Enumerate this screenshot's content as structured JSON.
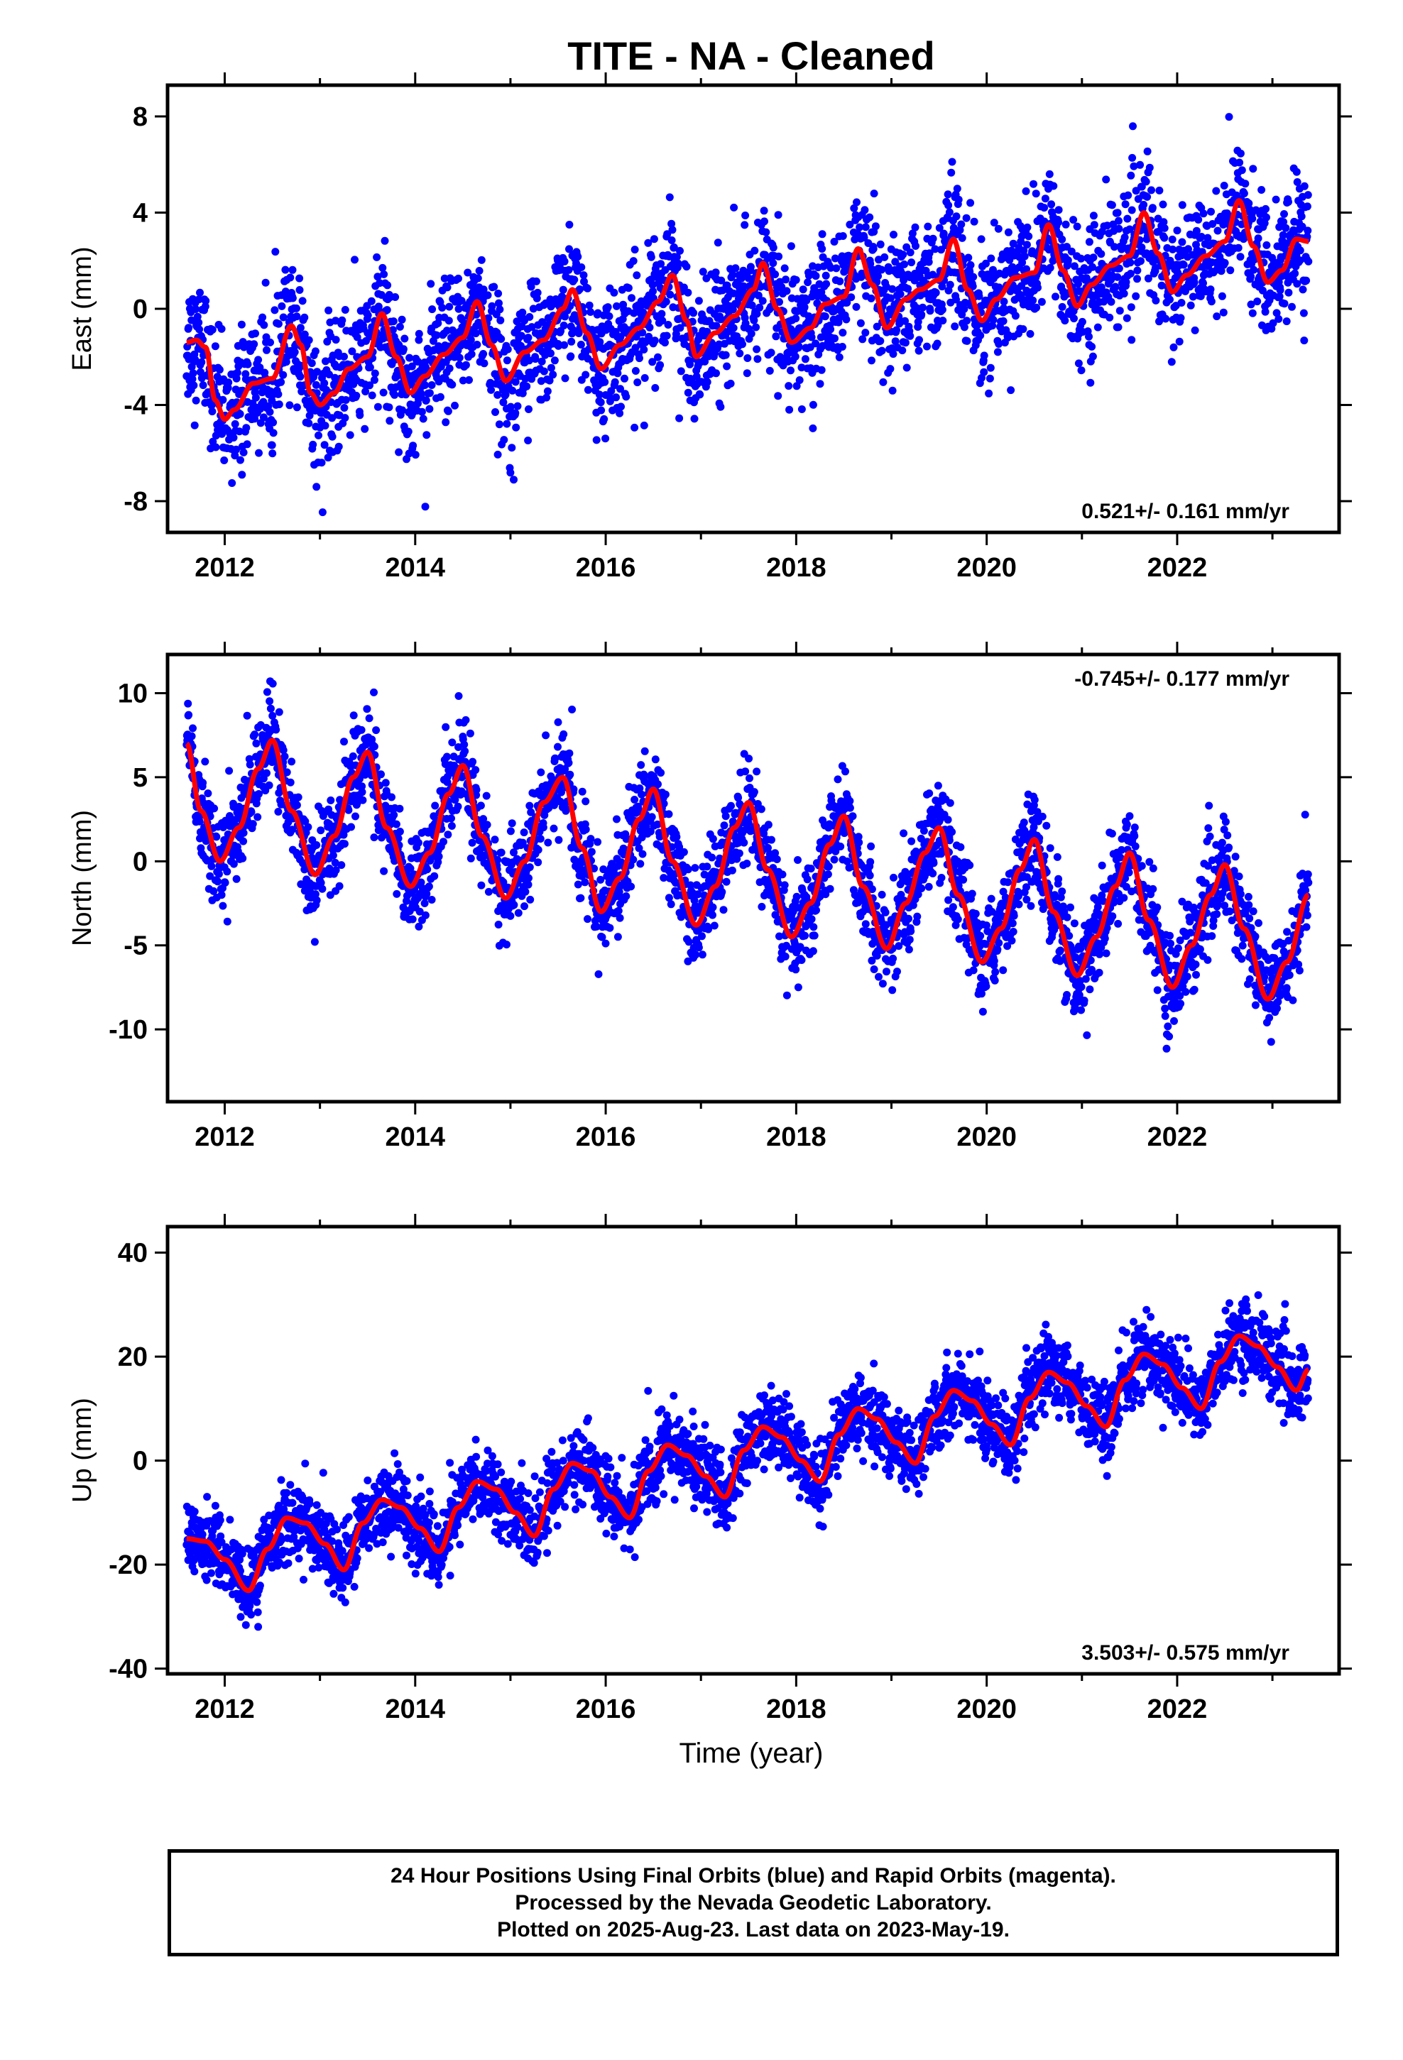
{
  "title": "TITE  - NA - Cleaned",
  "xlabel": "Time (year)",
  "footer": {
    "line1": "24 Hour Positions Using Final Orbits (blue) and Rapid Orbits (magenta).",
    "line2": "Processed by the Nevada Geodetic Laboratory.",
    "line3": "Plotted on 2025-Aug-23. Last data on 2023-May-19."
  },
  "colors": {
    "points": "#0000ff",
    "fit": "#ff0000",
    "axes": "#000000"
  },
  "chart_data": [
    {
      "type": "scatter",
      "ylabel": "East (mm)",
      "rate_text": "0.521+/- 0.161 mm/yr",
      "rate_position": "bottom-right",
      "xlim": [
        2011.4,
        2023.7
      ],
      "ylim": [
        -9.3,
        9.3
      ],
      "xticks": [
        2012,
        2014,
        2016,
        2018,
        2020,
        2022
      ],
      "yticks": [
        -8,
        -4,
        0,
        4,
        8
      ],
      "data_start": 2011.6,
      "data_end": 2023.38,
      "trend_rate": 0.521,
      "scatter_sigma": 1.35,
      "fit_knots": [
        [
          2011.6,
          -1.4
        ],
        [
          2011.7,
          -1.3
        ],
        [
          2011.8,
          -1.6
        ],
        [
          2011.9,
          -3.8
        ],
        [
          2012.0,
          -4.6
        ],
        [
          2012.1,
          -4.2
        ],
        [
          2012.3,
          -3.1
        ],
        [
          2012.5,
          -2.9
        ],
        [
          2012.7,
          -0.7
        ],
        [
          2012.8,
          -1.5
        ],
        [
          2012.9,
          -3.5
        ],
        [
          2013.0,
          -4.0
        ],
        [
          2013.15,
          -3.5
        ],
        [
          2013.3,
          -2.5
        ],
        [
          2013.5,
          -2.0
        ],
        [
          2013.65,
          -0.2
        ],
        [
          2013.8,
          -2.0
        ],
        [
          2013.95,
          -3.5
        ],
        [
          2014.1,
          -2.8
        ],
        [
          2014.3,
          -1.9
        ],
        [
          2014.5,
          -1.2
        ],
        [
          2014.65,
          0.3
        ],
        [
          2014.8,
          -1.5
        ],
        [
          2014.95,
          -3.0
        ],
        [
          2015.15,
          -1.8
        ],
        [
          2015.35,
          -1.3
        ],
        [
          2015.55,
          0.0
        ],
        [
          2015.65,
          0.8
        ],
        [
          2015.8,
          -1.0
        ],
        [
          2015.95,
          -2.5
        ],
        [
          2016.15,
          -1.5
        ],
        [
          2016.35,
          -0.8
        ],
        [
          2016.55,
          0.3
        ],
        [
          2016.7,
          1.4
        ],
        [
          2016.85,
          -0.5
        ],
        [
          2016.95,
          -2.0
        ],
        [
          2017.15,
          -1.0
        ],
        [
          2017.35,
          -0.3
        ],
        [
          2017.55,
          0.8
        ],
        [
          2017.65,
          1.9
        ],
        [
          2017.8,
          0.0
        ],
        [
          2017.95,
          -1.4
        ],
        [
          2018.15,
          -0.8
        ],
        [
          2018.3,
          0.2
        ],
        [
          2018.5,
          0.5
        ],
        [
          2018.65,
          2.5
        ],
        [
          2018.8,
          1.0
        ],
        [
          2018.95,
          -0.8
        ],
        [
          2019.15,
          0.4
        ],
        [
          2019.3,
          0.8
        ],
        [
          2019.5,
          1.2
        ],
        [
          2019.65,
          2.9
        ],
        [
          2019.8,
          0.8
        ],
        [
          2019.95,
          -0.5
        ],
        [
          2020.1,
          0.4
        ],
        [
          2020.3,
          1.3
        ],
        [
          2020.5,
          1.5
        ],
        [
          2020.65,
          3.5
        ],
        [
          2020.8,
          1.6
        ],
        [
          2020.95,
          0.1
        ],
        [
          2021.1,
          1.0
        ],
        [
          2021.3,
          1.8
        ],
        [
          2021.5,
          2.2
        ],
        [
          2021.65,
          4.0
        ],
        [
          2021.8,
          2.3
        ],
        [
          2021.95,
          0.7
        ],
        [
          2022.1,
          1.4
        ],
        [
          2022.3,
          2.2
        ],
        [
          2022.5,
          2.8
        ],
        [
          2022.65,
          4.5
        ],
        [
          2022.8,
          2.6
        ],
        [
          2022.95,
          1.1
        ],
        [
          2023.1,
          1.6
        ],
        [
          2023.25,
          2.9
        ],
        [
          2023.38,
          2.8
        ]
      ]
    },
    {
      "type": "scatter",
      "ylabel": "North (mm)",
      "rate_text": "-0.745+/- 0.177 mm/yr",
      "rate_position": "top-right",
      "xlim": [
        2011.4,
        2023.7
      ],
      "ylim": [
        -14.3,
        12.3
      ],
      "xticks": [
        2012,
        2014,
        2016,
        2018,
        2020,
        2022
      ],
      "yticks": [
        -10,
        -5,
        0,
        5,
        10
      ],
      "data_start": 2011.6,
      "data_end": 2023.38,
      "trend_rate": -0.745,
      "scatter_sigma": 1.4,
      "fit_knots": [
        [
          2011.6,
          7.0
        ],
        [
          2011.75,
          3.0
        ],
        [
          2011.95,
          0.0
        ],
        [
          2012.15,
          2.0
        ],
        [
          2012.35,
          5.5
        ],
        [
          2012.5,
          7.2
        ],
        [
          2012.7,
          3.0
        ],
        [
          2012.95,
          -0.8
        ],
        [
          2013.15,
          1.5
        ],
        [
          2013.35,
          5.0
        ],
        [
          2013.5,
          6.5
        ],
        [
          2013.7,
          2.0
        ],
        [
          2013.95,
          -1.5
        ],
        [
          2014.15,
          0.5
        ],
        [
          2014.35,
          4.0
        ],
        [
          2014.5,
          5.7
        ],
        [
          2014.7,
          1.5
        ],
        [
          2014.95,
          -2.2
        ],
        [
          2015.15,
          0.0
        ],
        [
          2015.35,
          3.5
        ],
        [
          2015.55,
          5.0
        ],
        [
          2015.75,
          0.8
        ],
        [
          2015.95,
          -3.0
        ],
        [
          2016.15,
          -1.0
        ],
        [
          2016.35,
          2.5
        ],
        [
          2016.5,
          4.3
        ],
        [
          2016.7,
          0.0
        ],
        [
          2016.95,
          -3.8
        ],
        [
          2017.15,
          -1.5
        ],
        [
          2017.35,
          2.0
        ],
        [
          2017.5,
          3.5
        ],
        [
          2017.7,
          -0.5
        ],
        [
          2017.95,
          -4.5
        ],
        [
          2018.15,
          -2.5
        ],
        [
          2018.35,
          1.0
        ],
        [
          2018.5,
          2.7
        ],
        [
          2018.7,
          -1.5
        ],
        [
          2018.95,
          -5.2
        ],
        [
          2019.15,
          -2.5
        ],
        [
          2019.35,
          0.5
        ],
        [
          2019.5,
          2.0
        ],
        [
          2019.7,
          -2.0
        ],
        [
          2019.95,
          -6.0
        ],
        [
          2020.15,
          -4.0
        ],
        [
          2020.35,
          -0.5
        ],
        [
          2020.5,
          1.3
        ],
        [
          2020.7,
          -3.0
        ],
        [
          2020.95,
          -6.8
        ],
        [
          2021.15,
          -4.5
        ],
        [
          2021.35,
          -1.5
        ],
        [
          2021.5,
          0.5
        ],
        [
          2021.7,
          -3.5
        ],
        [
          2021.95,
          -7.5
        ],
        [
          2022.15,
          -5.0
        ],
        [
          2022.35,
          -2.0
        ],
        [
          2022.5,
          -0.2
        ],
        [
          2022.7,
          -4.0
        ],
        [
          2022.95,
          -8.2
        ],
        [
          2023.15,
          -6.0
        ],
        [
          2023.38,
          -2.0
        ]
      ]
    },
    {
      "type": "scatter",
      "ylabel": "Up (mm)",
      "rate_text": "3.503+/- 0.575 mm/yr",
      "rate_position": "bottom-right",
      "xlim": [
        2011.4,
        2023.7
      ],
      "ylim": [
        -41,
        45
      ],
      "xticks": [
        2012,
        2014,
        2016,
        2018,
        2020,
        2022
      ],
      "yticks": [
        -40,
        -20,
        0,
        20,
        40
      ],
      "data_start": 2011.6,
      "data_end": 2023.38,
      "trend_rate": 3.503,
      "scatter_sigma": 3.6,
      "fit_knots": [
        [
          2011.6,
          -15.0
        ],
        [
          2011.8,
          -15.5
        ],
        [
          2012.0,
          -19.0
        ],
        [
          2012.25,
          -25.0
        ],
        [
          2012.45,
          -17.0
        ],
        [
          2012.65,
          -11.0
        ],
        [
          2012.85,
          -12.0
        ],
        [
          2013.05,
          -16.0
        ],
        [
          2013.25,
          -21.0
        ],
        [
          2013.45,
          -12.0
        ],
        [
          2013.65,
          -7.5
        ],
        [
          2013.85,
          -9.0
        ],
        [
          2014.05,
          -13.0
        ],
        [
          2014.25,
          -17.5
        ],
        [
          2014.45,
          -9.0
        ],
        [
          2014.65,
          -4.0
        ],
        [
          2014.85,
          -5.5
        ],
        [
          2015.05,
          -10.0
        ],
        [
          2015.25,
          -14.5
        ],
        [
          2015.45,
          -5.5
        ],
        [
          2015.65,
          -0.5
        ],
        [
          2015.85,
          -2.0
        ],
        [
          2016.05,
          -7.0
        ],
        [
          2016.25,
          -11.0
        ],
        [
          2016.45,
          -2.0
        ],
        [
          2016.65,
          3.0
        ],
        [
          2016.85,
          1.0
        ],
        [
          2017.05,
          -3.0
        ],
        [
          2017.25,
          -7.0
        ],
        [
          2017.45,
          2.0
        ],
        [
          2017.65,
          6.5
        ],
        [
          2017.85,
          4.5
        ],
        [
          2018.05,
          0.0
        ],
        [
          2018.25,
          -4.0
        ],
        [
          2018.45,
          5.0
        ],
        [
          2018.65,
          10.0
        ],
        [
          2018.85,
          8.0
        ],
        [
          2019.05,
          3.5
        ],
        [
          2019.25,
          -0.5
        ],
        [
          2019.45,
          8.5
        ],
        [
          2019.65,
          13.5
        ],
        [
          2019.85,
          11.5
        ],
        [
          2020.05,
          7.0
        ],
        [
          2020.25,
          3.0
        ],
        [
          2020.45,
          12.0
        ],
        [
          2020.65,
          17.0
        ],
        [
          2020.85,
          15.0
        ],
        [
          2021.05,
          10.5
        ],
        [
          2021.25,
          6.5
        ],
        [
          2021.45,
          15.5
        ],
        [
          2021.65,
          20.5
        ],
        [
          2021.85,
          18.5
        ],
        [
          2022.05,
          14.0
        ],
        [
          2022.25,
          10.0
        ],
        [
          2022.45,
          19.0
        ],
        [
          2022.65,
          24.0
        ],
        [
          2022.85,
          22.0
        ],
        [
          2023.05,
          18.0
        ],
        [
          2023.25,
          13.5
        ],
        [
          2023.38,
          17.5
        ]
      ]
    }
  ]
}
